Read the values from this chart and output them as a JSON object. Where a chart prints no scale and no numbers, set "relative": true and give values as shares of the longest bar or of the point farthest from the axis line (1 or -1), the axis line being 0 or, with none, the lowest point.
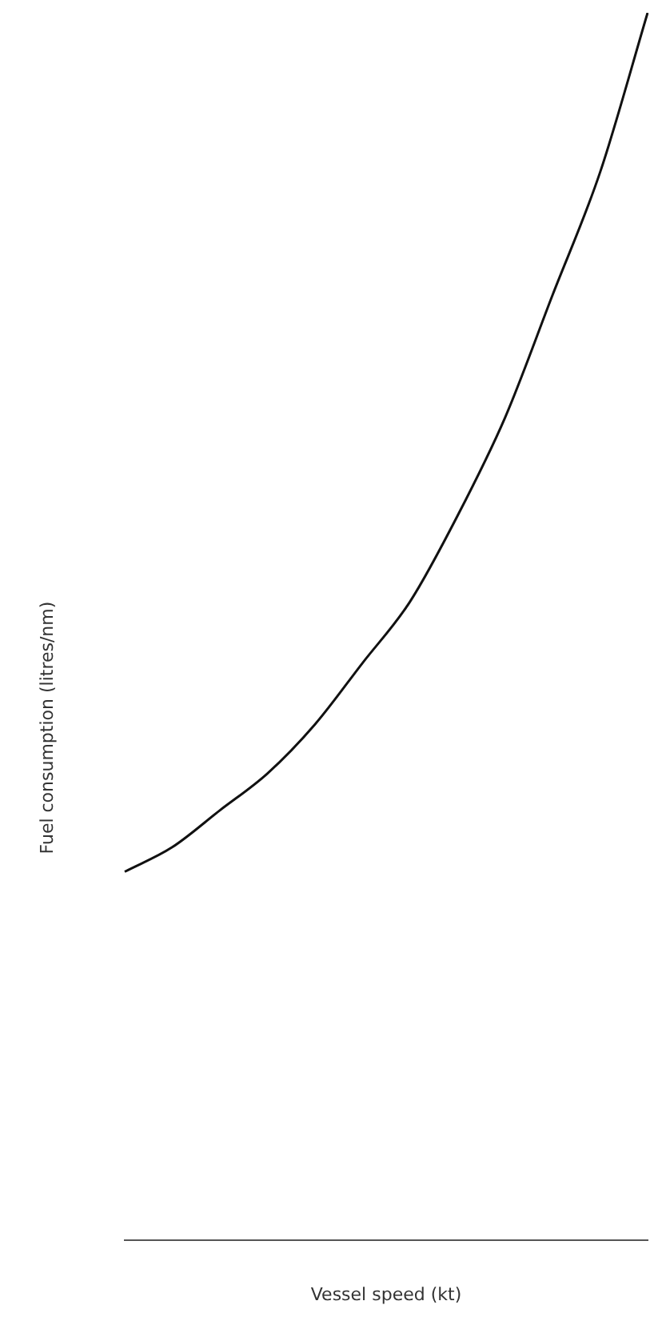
{
  "chart_data": {
    "type": "line",
    "relative": true,
    "xlabel": "Vessel speed (kt)",
    "ylabel": "Fuel consumption (litres/nm)",
    "categories": [
      null,
      null,
      null,
      null,
      null,
      null,
      null,
      null,
      null,
      null,
      null,
      null
    ],
    "series": [
      {
        "color": "#111111",
        "values": [
          0.3,
          0.32,
          0.35,
          0.38,
          0.42,
          0.47,
          0.52,
          0.59,
          0.67,
          0.77,
          0.87,
          1
        ]
      }
    ],
    "grid": false,
    "legend": false,
    "marker": "none",
    "line_style": "solid"
  }
}
